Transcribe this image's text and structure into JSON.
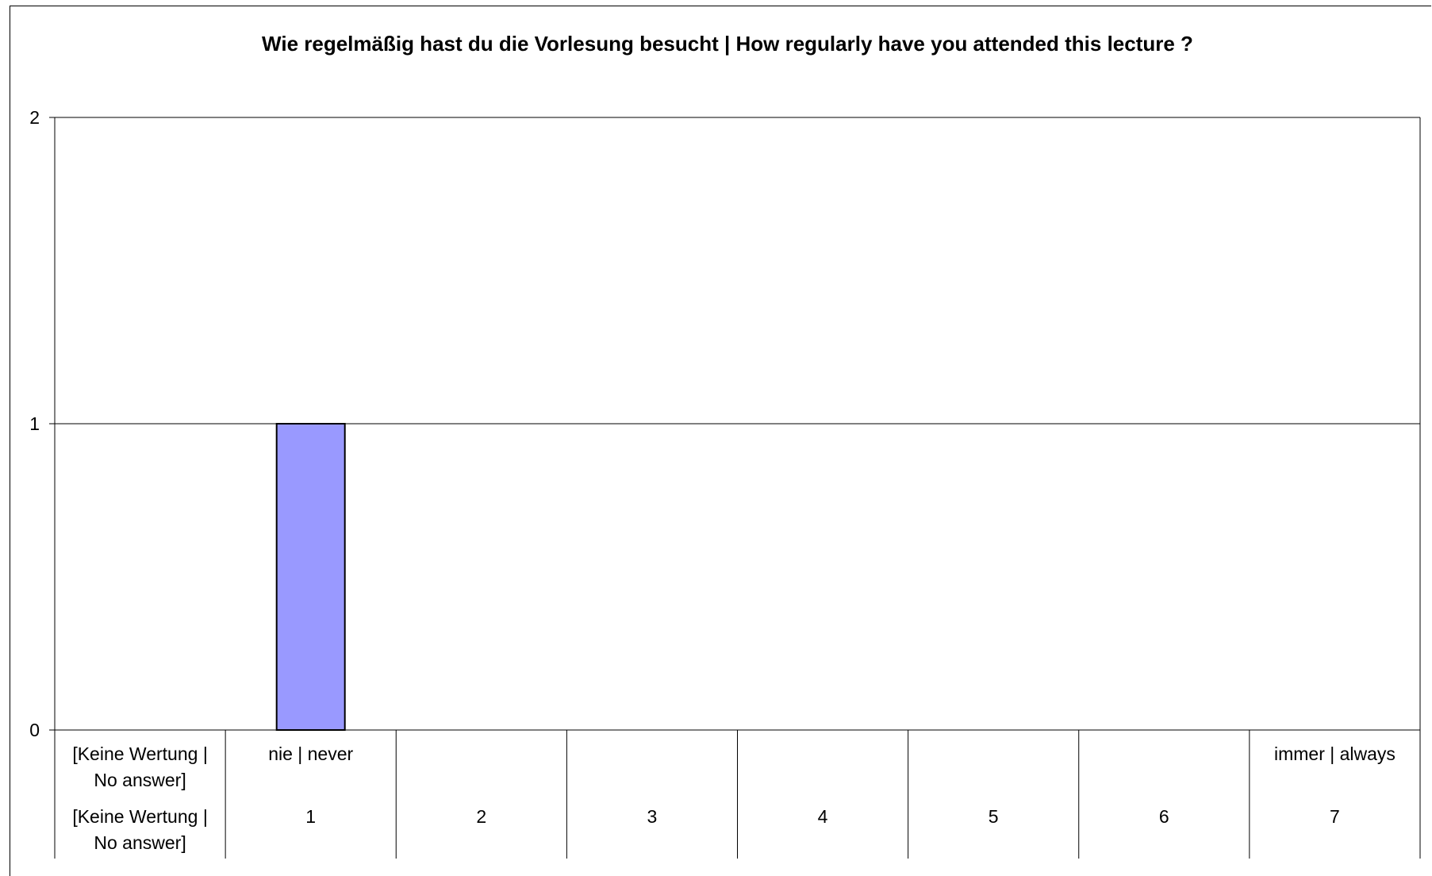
{
  "chart_data": {
    "type": "bar",
    "title": "Wie regelmäßig hast du die Vorlesung besucht | How regularly have you attended this lecture ?",
    "xlabel": "",
    "ylabel": "",
    "ylim": [
      0,
      2
    ],
    "yticks": [
      "0",
      "1",
      "2"
    ],
    "grid": true,
    "legend": "none",
    "categories": [
      "[Keine Wertung | No answer]",
      "1",
      "2",
      "3",
      "4",
      "5",
      "6",
      "7"
    ],
    "category_labels_row1": [
      [
        "[Keine Wertung |",
        "No answer]"
      ],
      [
        "nie | never"
      ],
      [
        ""
      ],
      [
        ""
      ],
      [
        ""
      ],
      [
        ""
      ],
      [
        ""
      ],
      [
        "immer | always"
      ]
    ],
    "category_labels_row2": [
      [
        "[Keine Wertung |",
        "No answer]"
      ],
      [
        "1"
      ],
      [
        "2"
      ],
      [
        "3"
      ],
      [
        "4"
      ],
      [
        "5"
      ],
      [
        "6"
      ],
      [
        "7"
      ]
    ],
    "values": [
      0,
      1,
      0,
      0,
      0,
      0,
      0,
      0
    ],
    "colors": {
      "bar_fill": "#9999ff",
      "bar_stroke": "#000000",
      "grid": "#000000",
      "axis": "#000000"
    }
  }
}
